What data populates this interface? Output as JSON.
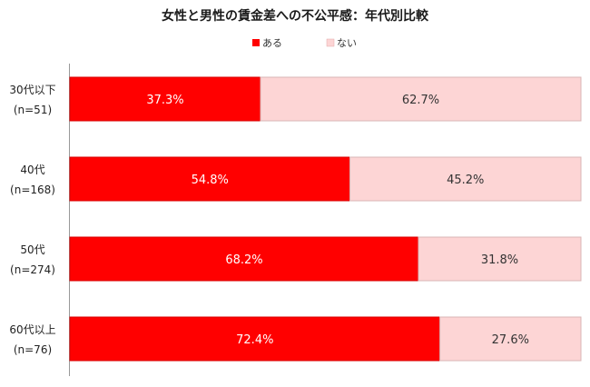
{
  "chart_data": {
    "type": "bar",
    "orientation": "horizontal",
    "stacked": "percent",
    "title": "女性と男性の賃金差への不公平感：年代別比較",
    "legend_position": "top",
    "categories": [
      {
        "line1": "30代以下",
        "line2": "(n=51)"
      },
      {
        "line1": "40代",
        "line2": "(n=168)"
      },
      {
        "line1": "50代",
        "line2": "(n=274)"
      },
      {
        "line1": "60代以上",
        "line2": "(n=76)"
      }
    ],
    "series": [
      {
        "name": "ある",
        "color": "#ff0000",
        "values": [
          37.3,
          54.8,
          68.2,
          72.4
        ],
        "labels": [
          "37.3%",
          "54.8%",
          "68.2%",
          "72.4%"
        ]
      },
      {
        "name": "ない",
        "color": "#fdd5d5",
        "values": [
          62.7,
          45.2,
          31.8,
          27.6
        ],
        "labels": [
          "62.7%",
          "45.2%",
          "31.8%",
          "27.6%"
        ]
      }
    ],
    "xlim": [
      0,
      100
    ],
    "grid": false
  }
}
